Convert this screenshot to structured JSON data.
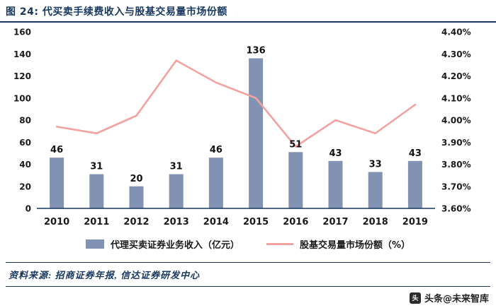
{
  "header": {
    "title": "图 24: 代买卖手续费收入与股基交易量市场份额"
  },
  "chart_data": {
    "type": "bar",
    "combo": "bar+line",
    "title": "代买卖手续费收入与股基交易量市场份额",
    "categories": [
      "2010",
      "2011",
      "2012",
      "2013",
      "2014",
      "2015",
      "2016",
      "2017",
      "2018",
      "2019"
    ],
    "series": [
      {
        "name": "代理买卖证券业务收入（亿元）",
        "chart": "bar",
        "axis": "left",
        "values": [
          46,
          31,
          20,
          31,
          46,
          136,
          51,
          43,
          33,
          43
        ],
        "color": "#8292B3",
        "data_labels": true
      },
      {
        "name": "股基交易量市场份额（%）",
        "chart": "line",
        "axis": "right",
        "values": [
          3.97,
          3.94,
          4.02,
          4.27,
          4.17,
          4.1,
          3.88,
          4.0,
          3.94,
          4.07
        ],
        "color": "#F2A3A0",
        "data_labels": false
      }
    ],
    "left_axis": {
      "min": 0,
      "max": 160,
      "step": 20
    },
    "right_axis": {
      "min": 3.6,
      "max": 4.4,
      "step": 0.1,
      "format": "0.00%"
    },
    "grid": false,
    "legend_position": "bottom"
  },
  "footer": {
    "source": "资料来源: 招商证券年报, 信达证券研发中心"
  },
  "watermark": {
    "text": "头条@未来智库",
    "icon_glyph": "头"
  },
  "colors": {
    "navy": "#17375E",
    "bar": "#8292B3",
    "line": "#F2A3A0",
    "text": "#1A1A1A"
  }
}
